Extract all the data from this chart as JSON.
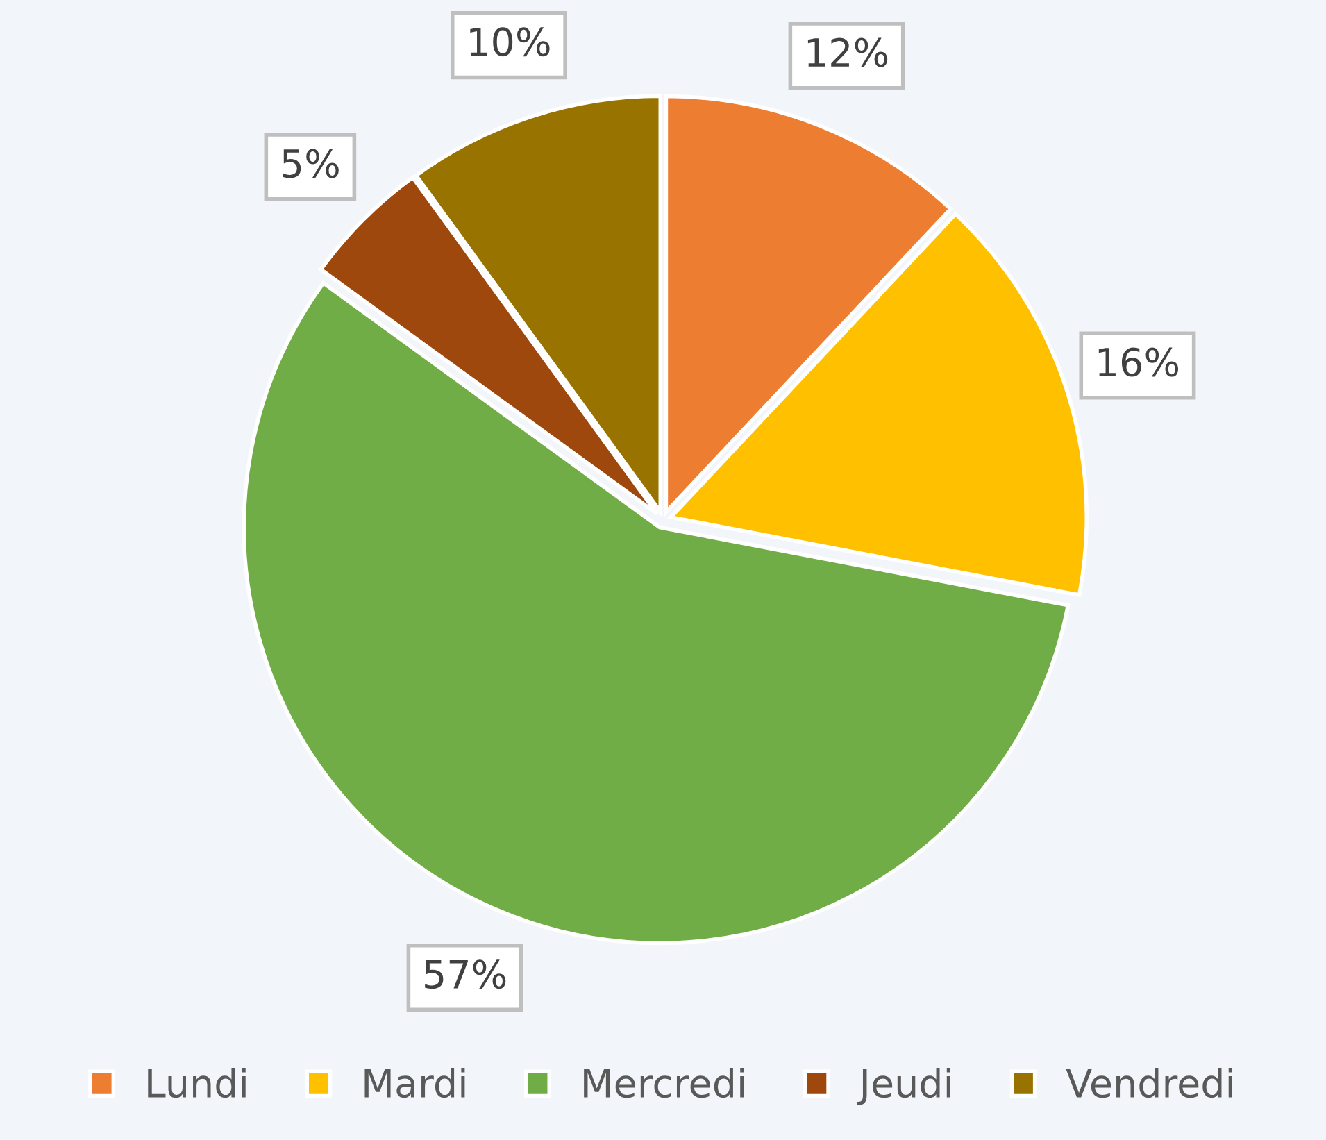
{
  "chart_data": {
    "type": "pie",
    "categories": [
      "Lundi",
      "Mardi",
      "Mercredi",
      "Jeudi",
      "Vendredi"
    ],
    "values": [
      12,
      16,
      57,
      5,
      10
    ],
    "colors": [
      "#ed7d31",
      "#ffc000",
      "#70ad47",
      "#9e480e",
      "#997300"
    ],
    "value_labels": [
      "12%",
      "16%",
      "57%",
      "5%",
      "10%"
    ],
    "legend": "bottom"
  }
}
